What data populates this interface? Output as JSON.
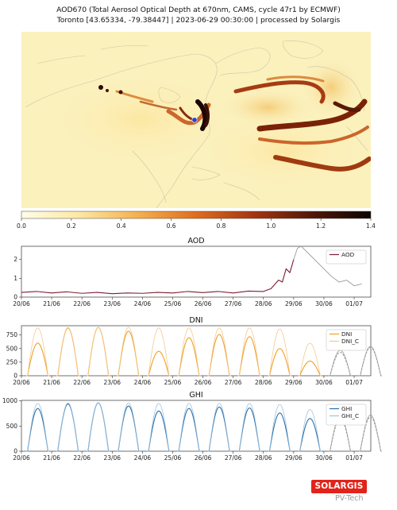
{
  "header": {
    "line1": "AOD670 (Total Aerosol Optical Depth at 670nm, CAMS, cycle 47r1 by ECMWF)",
    "line2": "Toronto [43.65334, -79.38447] | 2023-06-29 00:30:00 | processed by Solargis"
  },
  "colorbar": {
    "ticks": [
      "0.0",
      "0.2",
      "0.4",
      "0.6",
      "0.8",
      "1.0",
      "1.2",
      "1.4"
    ],
    "min": 0,
    "max": 1.4,
    "colors": [
      "#fffde8",
      "#fde9a3",
      "#f6b14f",
      "#e06d1c",
      "#a33411",
      "#4e1707",
      "#0d0402"
    ]
  },
  "colors": {
    "aod": "#7b1e33",
    "dni": "#f0a028",
    "dni_c": "#f3c98e",
    "ghi": "#2a6faa",
    "ghi_c": "#9fc3df",
    "forecast": "#9a9a9a",
    "map_base": "#fbf1bd",
    "map_land": "#f6e6a6",
    "logo": "#e2231a"
  },
  "logo": {
    "text": "SOLARGIS"
  },
  "watermark": {
    "text": "PV-Tech"
  },
  "chart_data": [
    {
      "type": "line",
      "title": "AOD",
      "x_ticks": [
        "20/06",
        "21/06",
        "22/06",
        "23/06",
        "24/06",
        "25/06",
        "26/06",
        "27/06",
        "28/06",
        "29/06",
        "30/06",
        "01/07"
      ],
      "xlim": [
        "2023-06-20",
        "2023-07-01"
      ],
      "ylim": [
        0,
        2.7
      ],
      "y_ticks": [
        "0",
        "1",
        "2"
      ],
      "legend": "right",
      "forecast_from": "2023-06-29",
      "series": [
        {
          "name": "AOD",
          "points": [
            [
              "2023-06-20",
              0.25
            ],
            [
              "2023-06-20 12:00",
              0.3
            ],
            [
              "2023-06-21",
              0.22
            ],
            [
              "2023-06-21 12:00",
              0.28
            ],
            [
              "2023-06-22",
              0.2
            ],
            [
              "2023-06-22 12:00",
              0.25
            ],
            [
              "2023-06-23",
              0.18
            ],
            [
              "2023-06-23 12:00",
              0.22
            ],
            [
              "2023-06-24",
              0.2
            ],
            [
              "2023-06-24 12:00",
              0.25
            ],
            [
              "2023-06-25",
              0.22
            ],
            [
              "2023-06-25 12:00",
              0.3
            ],
            [
              "2023-06-26",
              0.24
            ],
            [
              "2023-06-26 12:00",
              0.3
            ],
            [
              "2023-06-27",
              0.22
            ],
            [
              "2023-06-27 12:00",
              0.32
            ],
            [
              "2023-06-28",
              0.3
            ],
            [
              "2023-06-28 06:00",
              0.45
            ],
            [
              "2023-06-28 12:00",
              0.9
            ],
            [
              "2023-06-28 15:00",
              0.8
            ],
            [
              "2023-06-28 18:00",
              1.5
            ],
            [
              "2023-06-28 21:00",
              1.3
            ],
            [
              "2023-06-29",
              2.0
            ],
            [
              "2023-06-29 03:00",
              2.6
            ],
            [
              "2023-06-29 06:00",
              2.7
            ],
            [
              "2023-06-29 12:00",
              2.3
            ],
            [
              "2023-06-29 18:00",
              1.9
            ],
            [
              "2023-06-30",
              1.5
            ],
            [
              "2023-06-30 06:00",
              1.1
            ],
            [
              "2023-06-30 12:00",
              0.8
            ],
            [
              "2023-06-30 18:00",
              0.9
            ],
            [
              "2023-07-01",
              0.6
            ],
            [
              "2023-07-01 06:00",
              0.7
            ]
          ]
        }
      ]
    },
    {
      "type": "line",
      "title": "DNI",
      "x_ticks": [
        "20/06",
        "21/06",
        "22/06",
        "23/06",
        "24/06",
        "25/06",
        "26/06",
        "27/06",
        "28/06",
        "29/06",
        "30/06",
        "01/07"
      ],
      "xlim": [
        "2023-06-20",
        "2023-07-01"
      ],
      "ylim": [
        0,
        920
      ],
      "y_ticks": [
        "0",
        "250",
        "500",
        "750"
      ],
      "legend": "right",
      "forecast_from": "2023-06-29",
      "series": [
        {
          "name": "DNI",
          "peaks": [
            [
              "2023-06-20",
              600
            ],
            [
              "2023-06-21",
              880
            ],
            [
              "2023-06-22",
              890
            ],
            [
              "2023-06-23",
              820
            ],
            [
              "2023-06-24",
              450
            ],
            [
              "2023-06-25",
              700
            ],
            [
              "2023-06-26",
              760
            ],
            [
              "2023-06-27",
              720
            ],
            [
              "2023-06-28",
              500
            ],
            [
              "2023-06-29",
              270
            ],
            [
              "2023-06-30",
              430
            ],
            [
              "2023-07-01",
              520
            ]
          ]
        },
        {
          "name": "DNI_C",
          "peaks": [
            [
              "2023-06-20",
              880
            ],
            [
              "2023-06-21",
              890
            ],
            [
              "2023-06-22",
              890
            ],
            [
              "2023-06-23",
              890
            ],
            [
              "2023-06-24",
              880
            ],
            [
              "2023-06-25",
              880
            ],
            [
              "2023-06-26",
              880
            ],
            [
              "2023-06-27",
              880
            ],
            [
              "2023-06-28",
              860
            ],
            [
              "2023-06-29",
              600
            ],
            [
              "2023-06-30",
              470
            ],
            [
              "2023-07-01",
              540
            ]
          ]
        }
      ]
    },
    {
      "type": "line",
      "title": "GHI",
      "x_ticks": [
        "20/06",
        "21/06",
        "22/06",
        "23/06",
        "24/06",
        "25/06",
        "26/06",
        "27/06",
        "28/06",
        "29/06",
        "30/06",
        "01/07"
      ],
      "xlim": [
        "2023-06-20",
        "2023-07-01"
      ],
      "ylim": [
        0,
        1010
      ],
      "y_ticks": [
        "0",
        "500",
        "1000"
      ],
      "legend": "right",
      "forecast_from": "2023-06-29",
      "series": [
        {
          "name": "GHI",
          "peaks": [
            [
              "2023-06-20",
              850
            ],
            [
              "2023-06-21",
              940
            ],
            [
              "2023-06-22",
              960
            ],
            [
              "2023-06-23",
              900
            ],
            [
              "2023-06-24",
              800
            ],
            [
              "2023-06-25",
              850
            ],
            [
              "2023-06-26",
              880
            ],
            [
              "2023-06-27",
              860
            ],
            [
              "2023-06-28",
              760
            ],
            [
              "2023-06-29",
              650
            ],
            [
              "2023-06-30",
              650
            ],
            [
              "2023-07-01",
              680
            ]
          ]
        },
        {
          "name": "GHI_C",
          "peaks": [
            [
              "2023-06-20",
              950
            ],
            [
              "2023-06-21",
              960
            ],
            [
              "2023-06-22",
              960
            ],
            [
              "2023-06-23",
              960
            ],
            [
              "2023-06-24",
              950
            ],
            [
              "2023-06-25",
              950
            ],
            [
              "2023-06-26",
              950
            ],
            [
              "2023-06-27",
              950
            ],
            [
              "2023-06-28",
              930
            ],
            [
              "2023-06-29",
              830
            ],
            [
              "2023-06-30",
              700
            ],
            [
              "2023-07-01",
              720
            ]
          ]
        }
      ]
    }
  ]
}
